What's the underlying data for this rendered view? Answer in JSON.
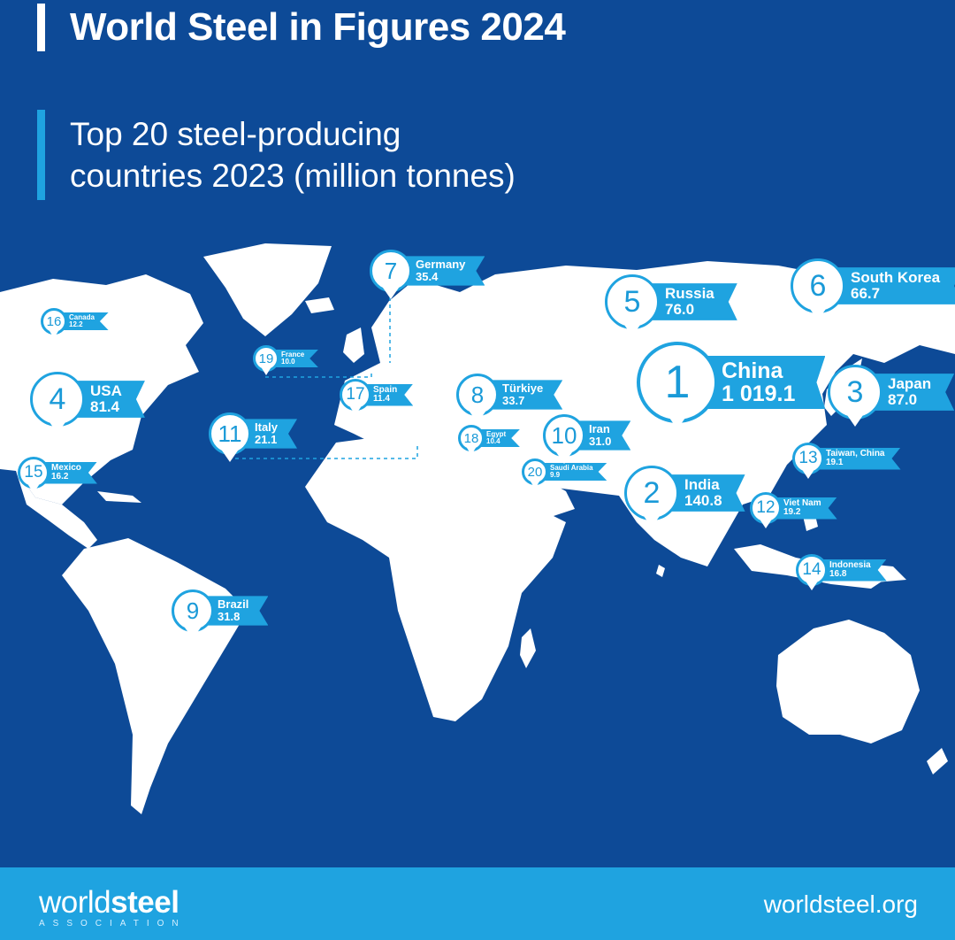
{
  "header": {
    "title": "World Steel in Figures 2024",
    "subtitle": "Top 20 steel-producing\ncountries 2023 (million tonnes)"
  },
  "colors": {
    "background": "#0d4a97",
    "land": "#ffffff",
    "accent": "#1fa3e0"
  },
  "chart_data": {
    "type": "map",
    "title": "Top 20 steel-producing countries 2023 (million tonnes)",
    "unit": "million tonnes",
    "countries": [
      {
        "rank": "1",
        "name": "China",
        "value": "1 019.1"
      },
      {
        "rank": "2",
        "name": "India",
        "value": "140.8"
      },
      {
        "rank": "3",
        "name": "Japan",
        "value": "87.0"
      },
      {
        "rank": "4",
        "name": "USA",
        "value": "81.4"
      },
      {
        "rank": "5",
        "name": "Russia",
        "value": "76.0"
      },
      {
        "rank": "6",
        "name": "South Korea",
        "value": "66.7"
      },
      {
        "rank": "7",
        "name": "Germany",
        "value": "35.4"
      },
      {
        "rank": "8",
        "name": "Türkiye",
        "value": "33.7"
      },
      {
        "rank": "9",
        "name": "Brazil",
        "value": "31.8"
      },
      {
        "rank": "10",
        "name": "Iran",
        "value": "31.0"
      },
      {
        "rank": "11",
        "name": "Italy",
        "value": "21.1"
      },
      {
        "rank": "12",
        "name": "Viet Nam",
        "value": "19.2"
      },
      {
        "rank": "13",
        "name": "Taiwan, China",
        "value": "19.1"
      },
      {
        "rank": "14",
        "name": "Indonesia",
        "value": "16.8"
      },
      {
        "rank": "15",
        "name": "Mexico",
        "value": "16.2"
      },
      {
        "rank": "16",
        "name": "Canada",
        "value": "12.2"
      },
      {
        "rank": "17",
        "name": "Spain",
        "value": "11.4"
      },
      {
        "rank": "18",
        "name": "Egypt",
        "value": "10.4"
      },
      {
        "rank": "19",
        "name": "France",
        "value": "10.0"
      },
      {
        "rank": "20",
        "name": "Saudi Arabia",
        "value": "9.9"
      }
    ]
  },
  "footer": {
    "logo_light": "world",
    "logo_bold": "steel",
    "logo_sub": "ASSOCIATION",
    "website": "worldsteel.org"
  }
}
